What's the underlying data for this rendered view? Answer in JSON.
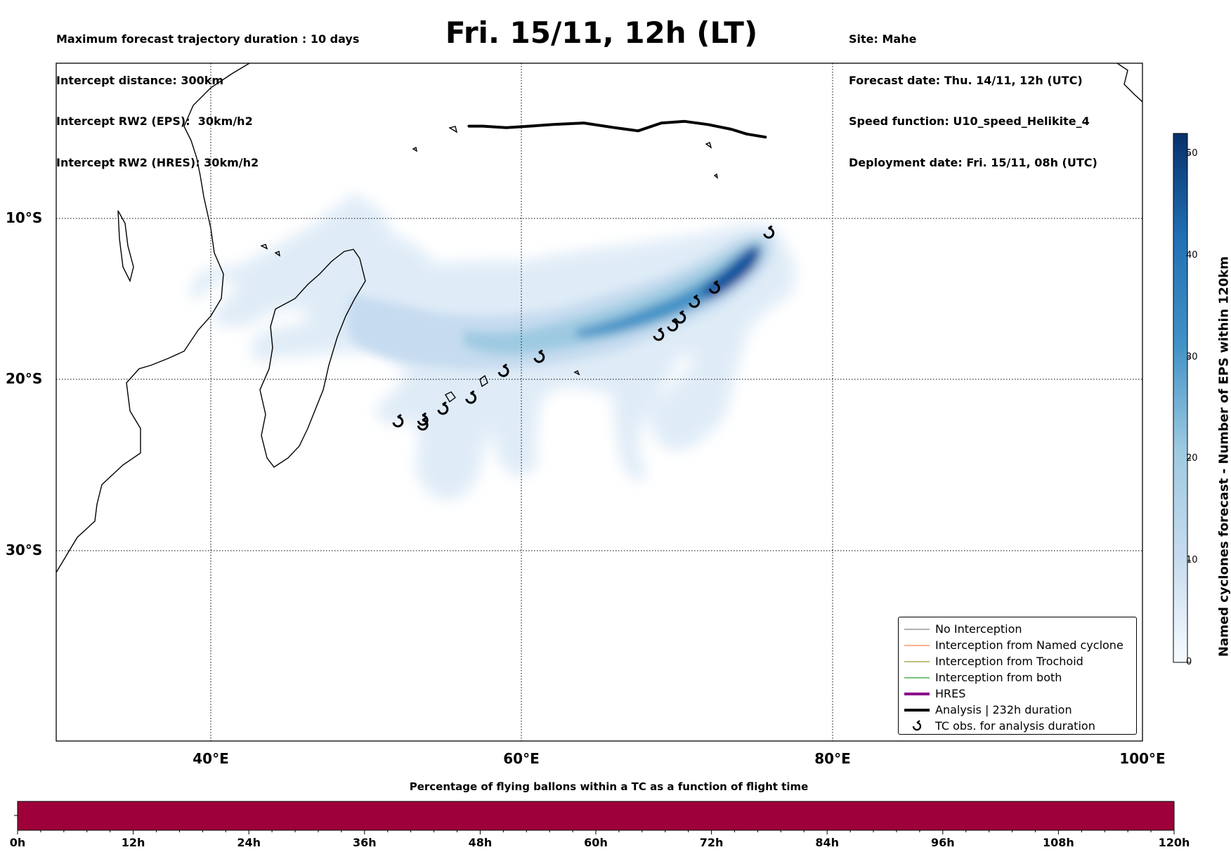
{
  "header": {
    "left_lines": [
      "Maximum forecast trajectory duration : 10 days",
      "Intercept distance: 300km",
      "Intercept RW2 (EPS):  30km/h2",
      "Intercept RW2 (HRES): 30km/h2"
    ],
    "title": "Fri. 15/11, 12h (LT)",
    "right_lines": [
      "Site: Mahe",
      "Forecast date: Thu. 14/11, 12h (UTC)",
      "Speed function: U10_speed_Helikite_4",
      "Deployment date: Fri. 15/11, 08h (UTC)"
    ]
  },
  "map": {
    "lat_labels": [
      "10°S",
      "20°S",
      "30°S"
    ],
    "lon_labels": [
      "40°E",
      "60°E",
      "80°E",
      "100°E"
    ],
    "extent": {
      "lon_min": 30,
      "lon_max": 100,
      "lat_min": -43.5,
      "lat_max": -0.4
    }
  },
  "colorbar": {
    "label": "Named cyclones forecast - Number of EPS within 120km",
    "ticks": [
      "0",
      "10",
      "20",
      "30",
      "40",
      "50"
    ],
    "vmin": 0,
    "vmax": 52,
    "color_low": "#f7fbff",
    "color_high": "#08306b"
  },
  "legend": {
    "items": [
      {
        "label": "No Interception",
        "color": "#808080",
        "style": "thin-line"
      },
      {
        "label": "Interception from Named cyclone",
        "color": "#ff7f50",
        "style": "thin-line"
      },
      {
        "label": "Interception from Trochoid",
        "color": "#9a9a2a",
        "style": "thin-line"
      },
      {
        "label": "Interception from both",
        "color": "#2ca02c",
        "style": "thin-line"
      },
      {
        "label": "HRES",
        "color": "#8b008b",
        "style": "thick-line"
      },
      {
        "label": "Analysis | 232h duration",
        "color": "#000000",
        "style": "thick-line"
      },
      {
        "label": "TC obs. for analysis duration",
        "color": "#000000",
        "style": "cyclone-symbol"
      }
    ]
  },
  "analysis_track_lonlat": [
    [
      56.6,
      -4.4
    ],
    [
      57.5,
      -4.4
    ],
    [
      59,
      -4.5
    ],
    [
      60.5,
      -4.4
    ],
    [
      62,
      -4.3
    ],
    [
      64,
      -4.2
    ],
    [
      66,
      -4.5
    ],
    [
      67.5,
      -4.7
    ],
    [
      69,
      -4.2
    ],
    [
      70.5,
      -4.1
    ],
    [
      72,
      -4.3
    ],
    [
      73.5,
      -4.6
    ],
    [
      74.5,
      -4.9
    ],
    [
      75.7,
      -5.1
    ]
  ],
  "tc_observations_lonlat": [
    [
      52.0,
      -23.2
    ],
    [
      53.6,
      -23.1
    ],
    [
      53.6,
      -23.4
    ],
    [
      54.9,
      -22.4
    ],
    [
      56.7,
      -21.7
    ],
    [
      58.8,
      -20.0
    ],
    [
      61.1,
      -19.1
    ],
    [
      68.8,
      -17.7
    ],
    [
      69.7,
      -17.1
    ],
    [
      70.2,
      -16.6
    ],
    [
      71.1,
      -15.6
    ],
    [
      72.4,
      -14.7
    ],
    [
      75.9,
      -11.2
    ]
  ],
  "flight_time_bar": {
    "title": "Percentage of flying ballons within a TC as a function of flight time",
    "ticks": [
      "0h",
      "12h",
      "24h",
      "36h",
      "48h",
      "60h",
      "72h",
      "84h",
      "96h",
      "108h",
      "120h"
    ],
    "fill_color": "#9e003a"
  }
}
